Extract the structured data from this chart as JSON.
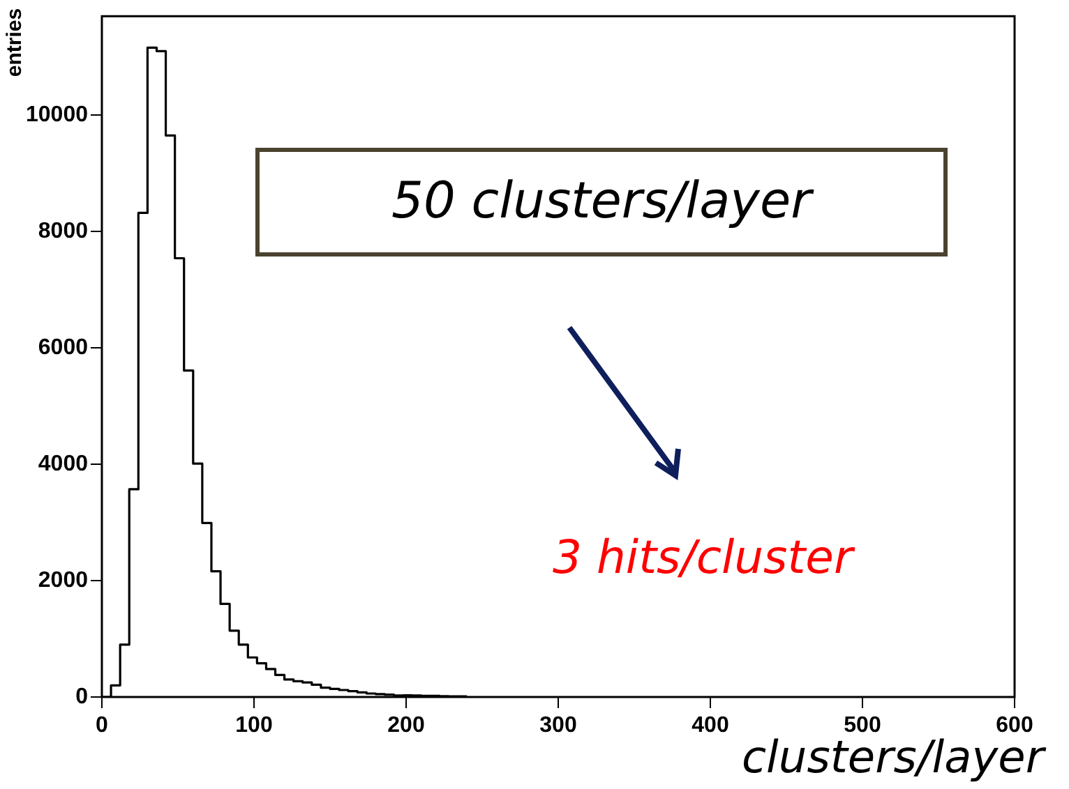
{
  "chart_data": {
    "type": "histogram",
    "xlabel": "clusters/layer",
    "ylabel": "entries",
    "bins": [
      0,
      6,
      12,
      18,
      24,
      30,
      36,
      42,
      48,
      54,
      60,
      66,
      72,
      78,
      84,
      90,
      96,
      102,
      108,
      114,
      120,
      126,
      132,
      138,
      144,
      150,
      156,
      162,
      168,
      174,
      180,
      186,
      192,
      198,
      204,
      210,
      216,
      222,
      228,
      234,
      240
    ],
    "values": [
      0,
      200,
      900,
      3570,
      8320,
      11160,
      11100,
      9650,
      7540,
      5610,
      4010,
      2990,
      2160,
      1600,
      1140,
      900,
      680,
      580,
      480,
      380,
      300,
      270,
      250,
      210,
      160,
      140,
      120,
      100,
      80,
      60,
      50,
      40,
      25,
      30,
      25,
      20,
      20,
      15,
      10,
      10
    ],
    "color": "#000000",
    "xlim": [
      0,
      600
    ],
    "xticks": [
      0,
      100,
      200,
      300,
      400,
      500,
      600
    ],
    "ylim": [
      0,
      11700
    ],
    "yticks": [
      0,
      2000,
      4000,
      6000,
      8000,
      10000
    ],
    "grid": false,
    "legend": false,
    "annotations": [
      "50 clusters/layer",
      "3 hits/cluster"
    ]
  }
}
